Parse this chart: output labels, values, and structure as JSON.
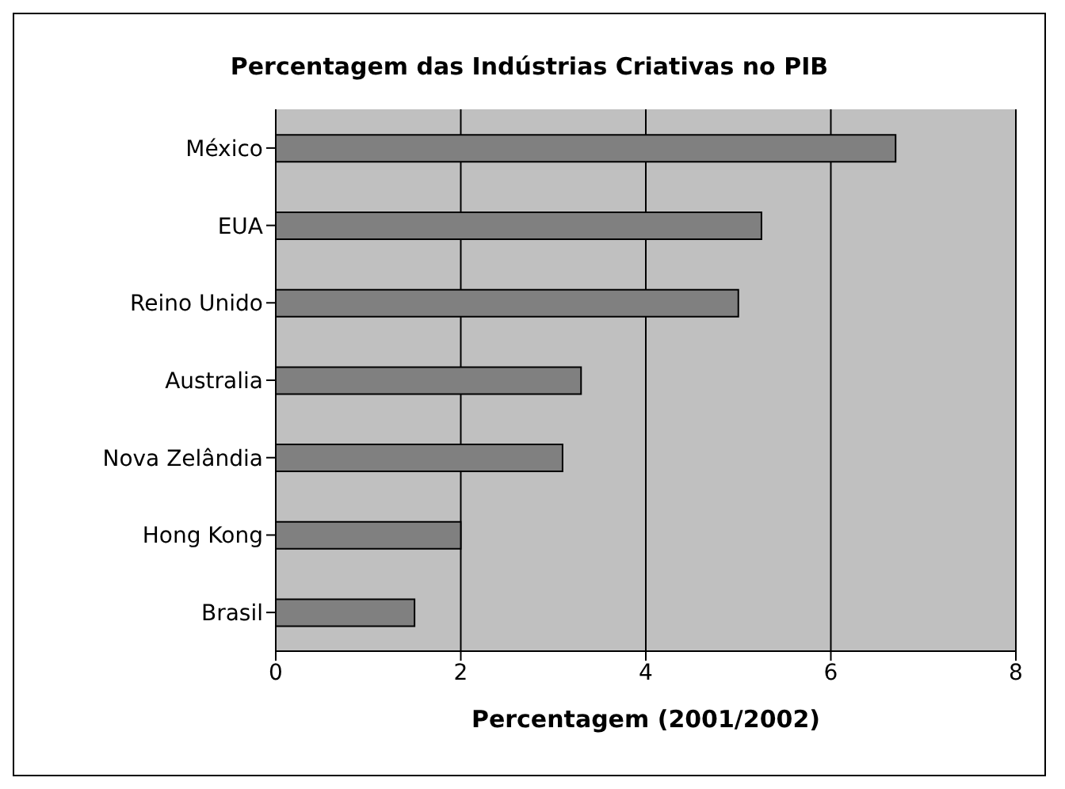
{
  "chart_data": {
    "type": "bar",
    "orientation": "horizontal",
    "title": "Percentagem das Indústrias Criativas no PIB",
    "xlabel": "Percentagem (2001/2002)",
    "categories": [
      "México",
      "EUA",
      "Reino Unido",
      "Australia",
      "Nova Zelândia",
      "Hong Kong",
      "Brasil"
    ],
    "values": [
      6.7,
      5.25,
      5.0,
      3.3,
      3.1,
      2.0,
      1.5
    ],
    "color": "#808080",
    "xlim": [
      0,
      8
    ],
    "xticks": [
      0,
      2,
      4,
      6,
      8
    ],
    "grid": "x",
    "legend": false
  }
}
